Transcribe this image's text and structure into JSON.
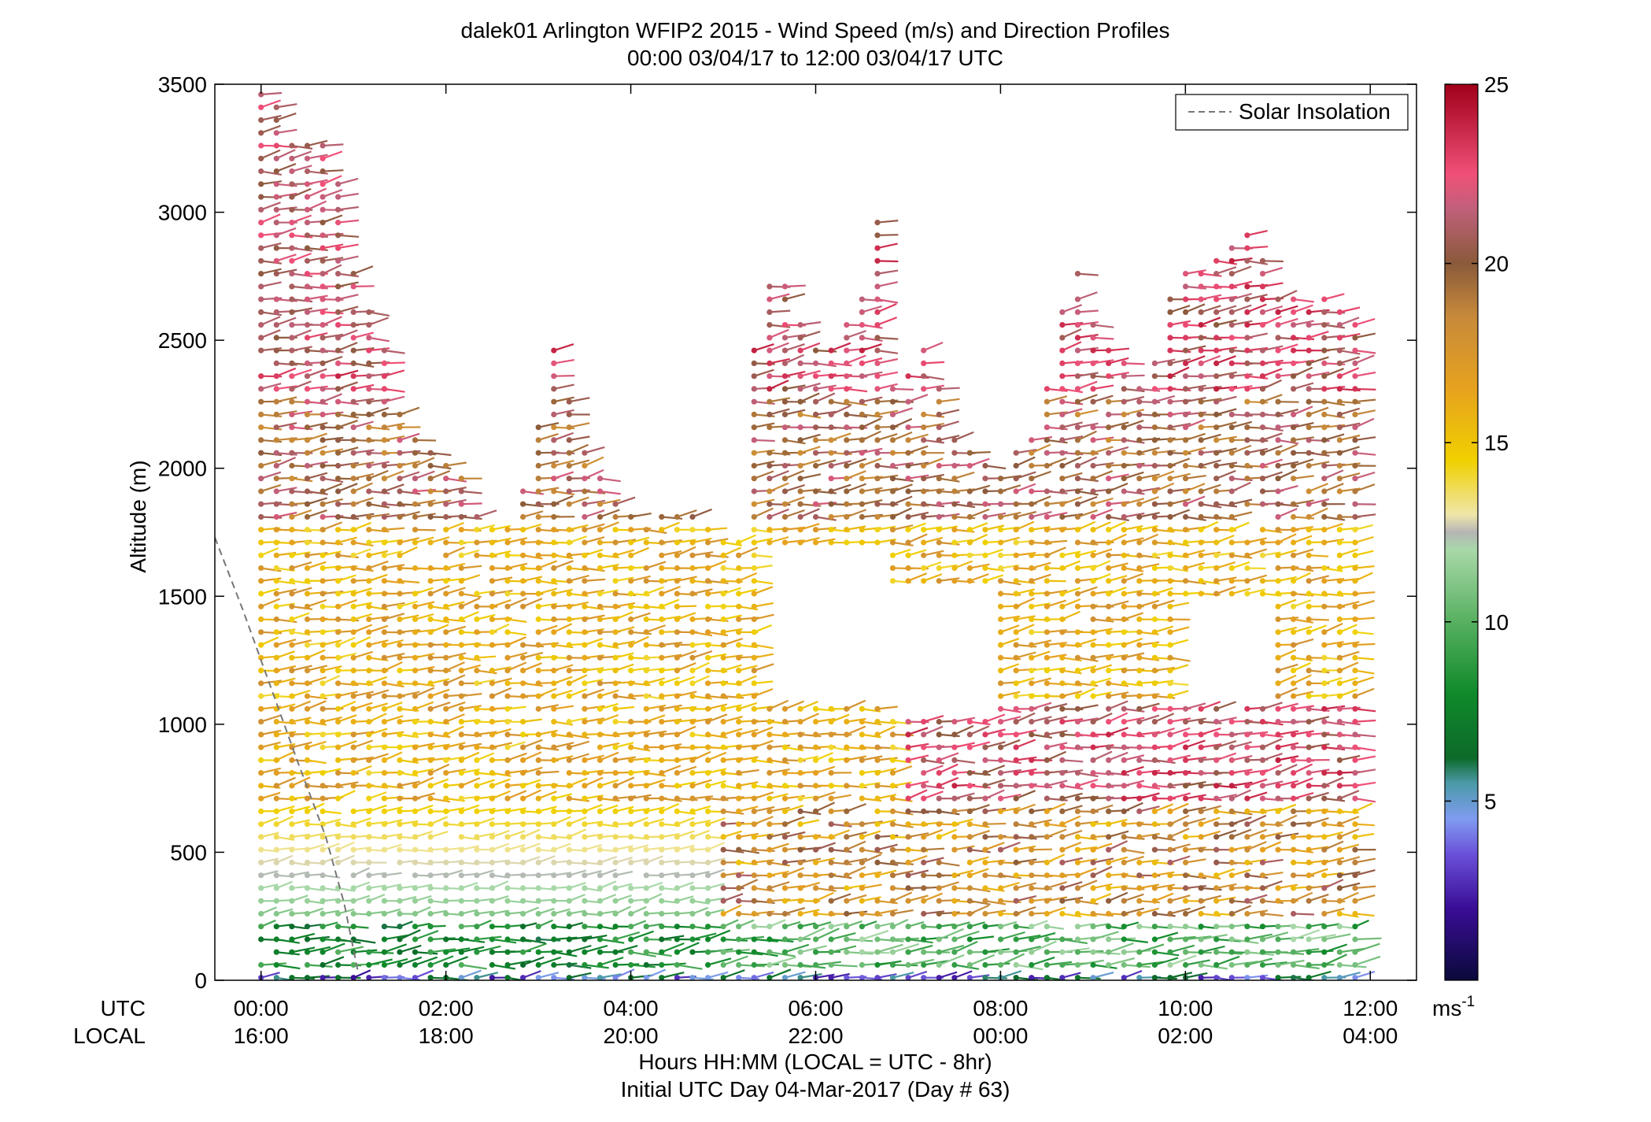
{
  "chart_data": {
    "type": "scatter",
    "title": "dalek01 Arlington WFIP2 2015 - Wind Speed (m/s) and Direction Profiles",
    "subtitle": "00:00 03/04/17 to 12:00 03/04/17  UTC",
    "ylabel": "Altitude (m)",
    "xlabel": "Hours HH:MM  (LOCAL = UTC - 8hr)",
    "xlabel2": "Initial UTC Day 04-Mar-2017 (Day # 63)",
    "x_row_labels": [
      "UTC",
      "LOCAL"
    ],
    "xlim_hours": [
      -0.5,
      12.5
    ],
    "ylim": [
      0,
      3500
    ],
    "yticks": [
      0,
      500,
      1000,
      1500,
      2000,
      2500,
      3000,
      3500
    ],
    "ytick_labels": [
      "0",
      "500",
      "1000",
      "1500",
      "2000",
      "2500",
      "3000",
      "3500"
    ],
    "xticks_hours": [
      0,
      2,
      4,
      6,
      8,
      10,
      12
    ],
    "xtick_labels_utc": [
      "00:00",
      "02:00",
      "04:00",
      "06:00",
      "08:00",
      "10:00",
      "12:00"
    ],
    "xtick_labels_local": [
      "16:00",
      "18:00",
      "20:00",
      "22:00",
      "00:00",
      "02:00",
      "04:00"
    ],
    "legend": {
      "label": "Solar Insolation",
      "placement": "top-right",
      "line_color": "#777777"
    },
    "colorbar": {
      "min": 0,
      "max": 25,
      "ticks": [
        5,
        10,
        15,
        20,
        25
      ],
      "tick_labels": [
        "5",
        "10",
        "15",
        "20",
        "25"
      ],
      "unit_label": "ms",
      "unit_exponent": "-1",
      "stops": [
        {
          "v": 0,
          "c": "#0a0a3a"
        },
        {
          "v": 2,
          "c": "#3a0d96"
        },
        {
          "v": 3.5,
          "c": "#6a4fd8"
        },
        {
          "v": 4.5,
          "c": "#7f9bf0"
        },
        {
          "v": 5.5,
          "c": "#4b9aa8"
        },
        {
          "v": 6.2,
          "c": "#0d6a2a"
        },
        {
          "v": 8,
          "c": "#0f8a2a"
        },
        {
          "v": 10,
          "c": "#57b060"
        },
        {
          "v": 12,
          "c": "#a8d8a8"
        },
        {
          "v": 12.5,
          "c": "#b5b5b5"
        },
        {
          "v": 13,
          "c": "#efe6a8"
        },
        {
          "v": 14.5,
          "c": "#f0d000"
        },
        {
          "v": 16.5,
          "c": "#e6a21e"
        },
        {
          "v": 18.5,
          "c": "#c88a3a"
        },
        {
          "v": 20,
          "c": "#8a5a3a"
        },
        {
          "v": 21.5,
          "c": "#c0607a"
        },
        {
          "v": 22.5,
          "c": "#f05078"
        },
        {
          "v": 25,
          "c": "#a00018"
        }
      ]
    },
    "solar_insolation": {
      "x_hours": [
        -0.5,
        -0.2,
        0.1,
        0.4,
        0.7,
        0.9,
        1.05
      ],
      "y_m": [
        1730,
        1450,
        1150,
        850,
        560,
        300,
        30
      ]
    },
    "profiles": {
      "time_step_hours": 0.1667,
      "profile_span": [
        0,
        11.95
      ],
      "segments": [
        {
          "t0": 0.0,
          "t1": 1.0,
          "top": [
            3500,
            3400,
            3300,
            3300,
            3200,
            2800
          ]
        },
        {
          "t0": 1.0,
          "t1": 2.25,
          "top": [
            2800,
            2600,
            2500,
            2200,
            2100,
            2050,
            2000,
            2000
          ]
        },
        {
          "t0": 2.25,
          "t1": 5.25,
          "top": [
            1850,
            1800,
            1750,
            1850,
            2100,
            2500,
            2300,
            2100,
            2000,
            1900,
            1850,
            1800,
            1850,
            1850,
            1800,
            1750,
            1750,
            1750
          ]
        },
        {
          "t0": 5.25,
          "t1": 6.7,
          "top": [
            2200,
            2700,
            2800,
            2700,
            2550,
            2450,
            2500,
            2600,
            2700,
            3050
          ]
        },
        {
          "t0": 6.7,
          "t1": 9.0,
          "top": [
            2450,
            2300,
            2400,
            2500,
            2200,
            2100,
            2100,
            2000,
            2100,
            2100,
            2300,
            2600,
            2800,
            2700
          ]
        },
        {
          "t0": 9.0,
          "t1": 12.0,
          "top": [
            2600,
            2500,
            2400,
            2300,
            2450,
            2750,
            2800,
            2800,
            2850,
            2950,
            2950,
            2700,
            2700,
            2600,
            2700,
            2650,
            2600,
            2600
          ]
        }
      ],
      "gaps": [
        {
          "t0": 5.5,
          "t1": 6.7,
          "lo": 1100,
          "hi": 1700
        },
        {
          "t0": 6.8,
          "t1": 8.0,
          "lo": 1050,
          "hi": 1550
        },
        {
          "t0": 9.9,
          "t1": 11.0,
          "lo": 1100,
          "hi": 1500
        }
      ],
      "barb_length_px": 22
    }
  }
}
